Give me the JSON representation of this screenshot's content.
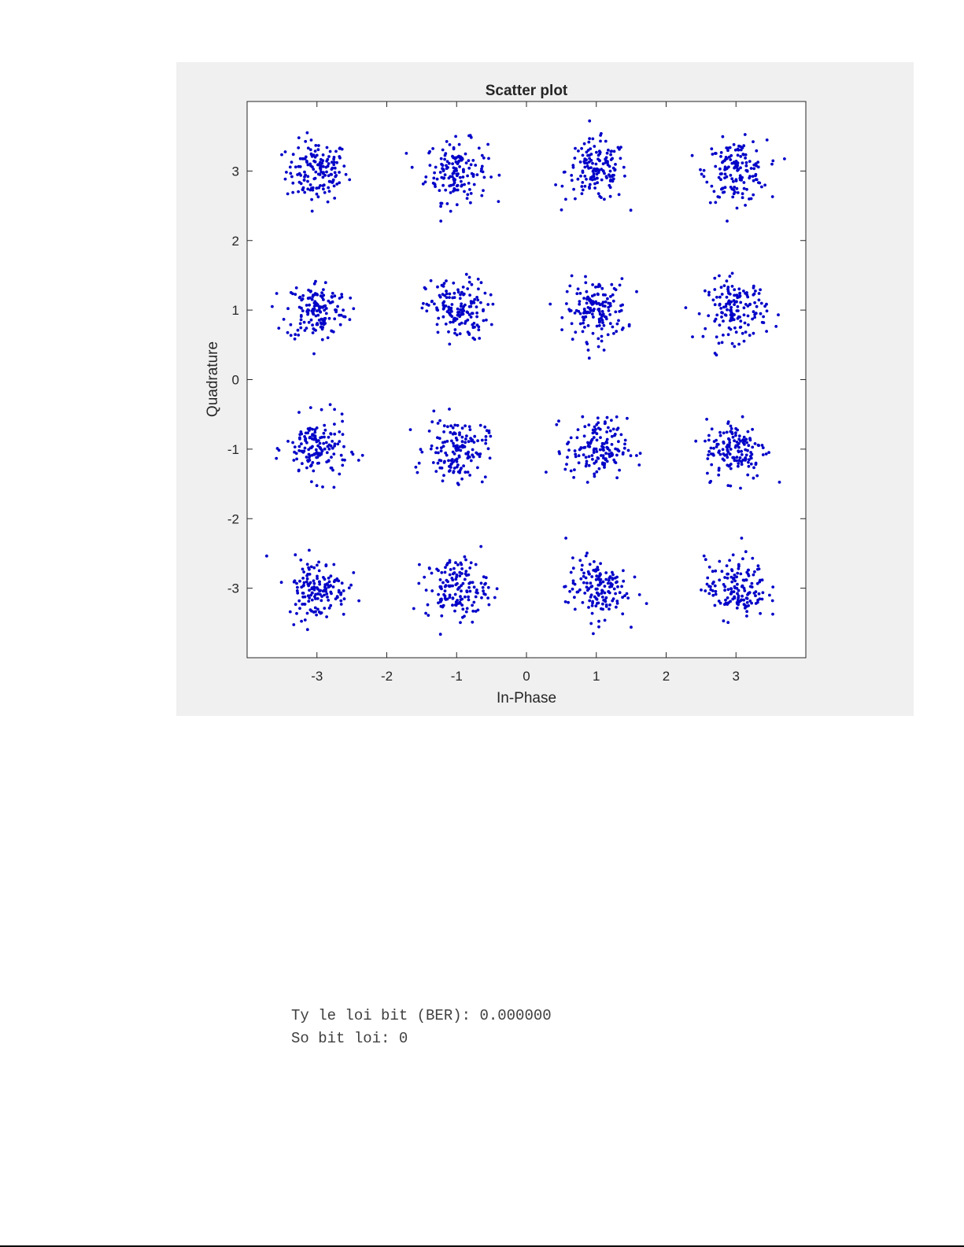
{
  "chart_data": {
    "type": "scatter",
    "title": "Scatter plot",
    "xlabel": "In-Phase",
    "ylabel": "Quadrature",
    "xlim": [
      -4,
      4
    ],
    "ylim": [
      -4,
      4
    ],
    "xticks": [
      -3,
      -2,
      -1,
      0,
      1,
      2,
      3
    ],
    "yticks": [
      -3,
      -2,
      -1,
      0,
      1,
      2,
      3
    ],
    "xtick_labels": [
      "-3",
      "-2",
      "-1",
      "0",
      "1",
      "2",
      "3"
    ],
    "ytick_labels": [
      "-3",
      "-2",
      "-1",
      "0",
      "1",
      "2",
      "3"
    ],
    "constellation_points": [
      [
        -3,
        3
      ],
      [
        -1,
        3
      ],
      [
        1,
        3
      ],
      [
        3,
        3
      ],
      [
        -3,
        1
      ],
      [
        -1,
        1
      ],
      [
        1,
        1
      ],
      [
        3,
        1
      ],
      [
        -3,
        -1
      ],
      [
        -1,
        -1
      ],
      [
        1,
        -1
      ],
      [
        3,
        -1
      ],
      [
        -3,
        -3
      ],
      [
        -1,
        -3
      ],
      [
        1,
        -3
      ],
      [
        3,
        -3
      ]
    ],
    "points_per_cluster": 150,
    "noise_std": 0.22,
    "marker_color": "#0000c8",
    "grid": false
  },
  "console": {
    "line1": "Ty le loi bit (BER): 0.000000",
    "line2": "So bit loi: 0"
  }
}
